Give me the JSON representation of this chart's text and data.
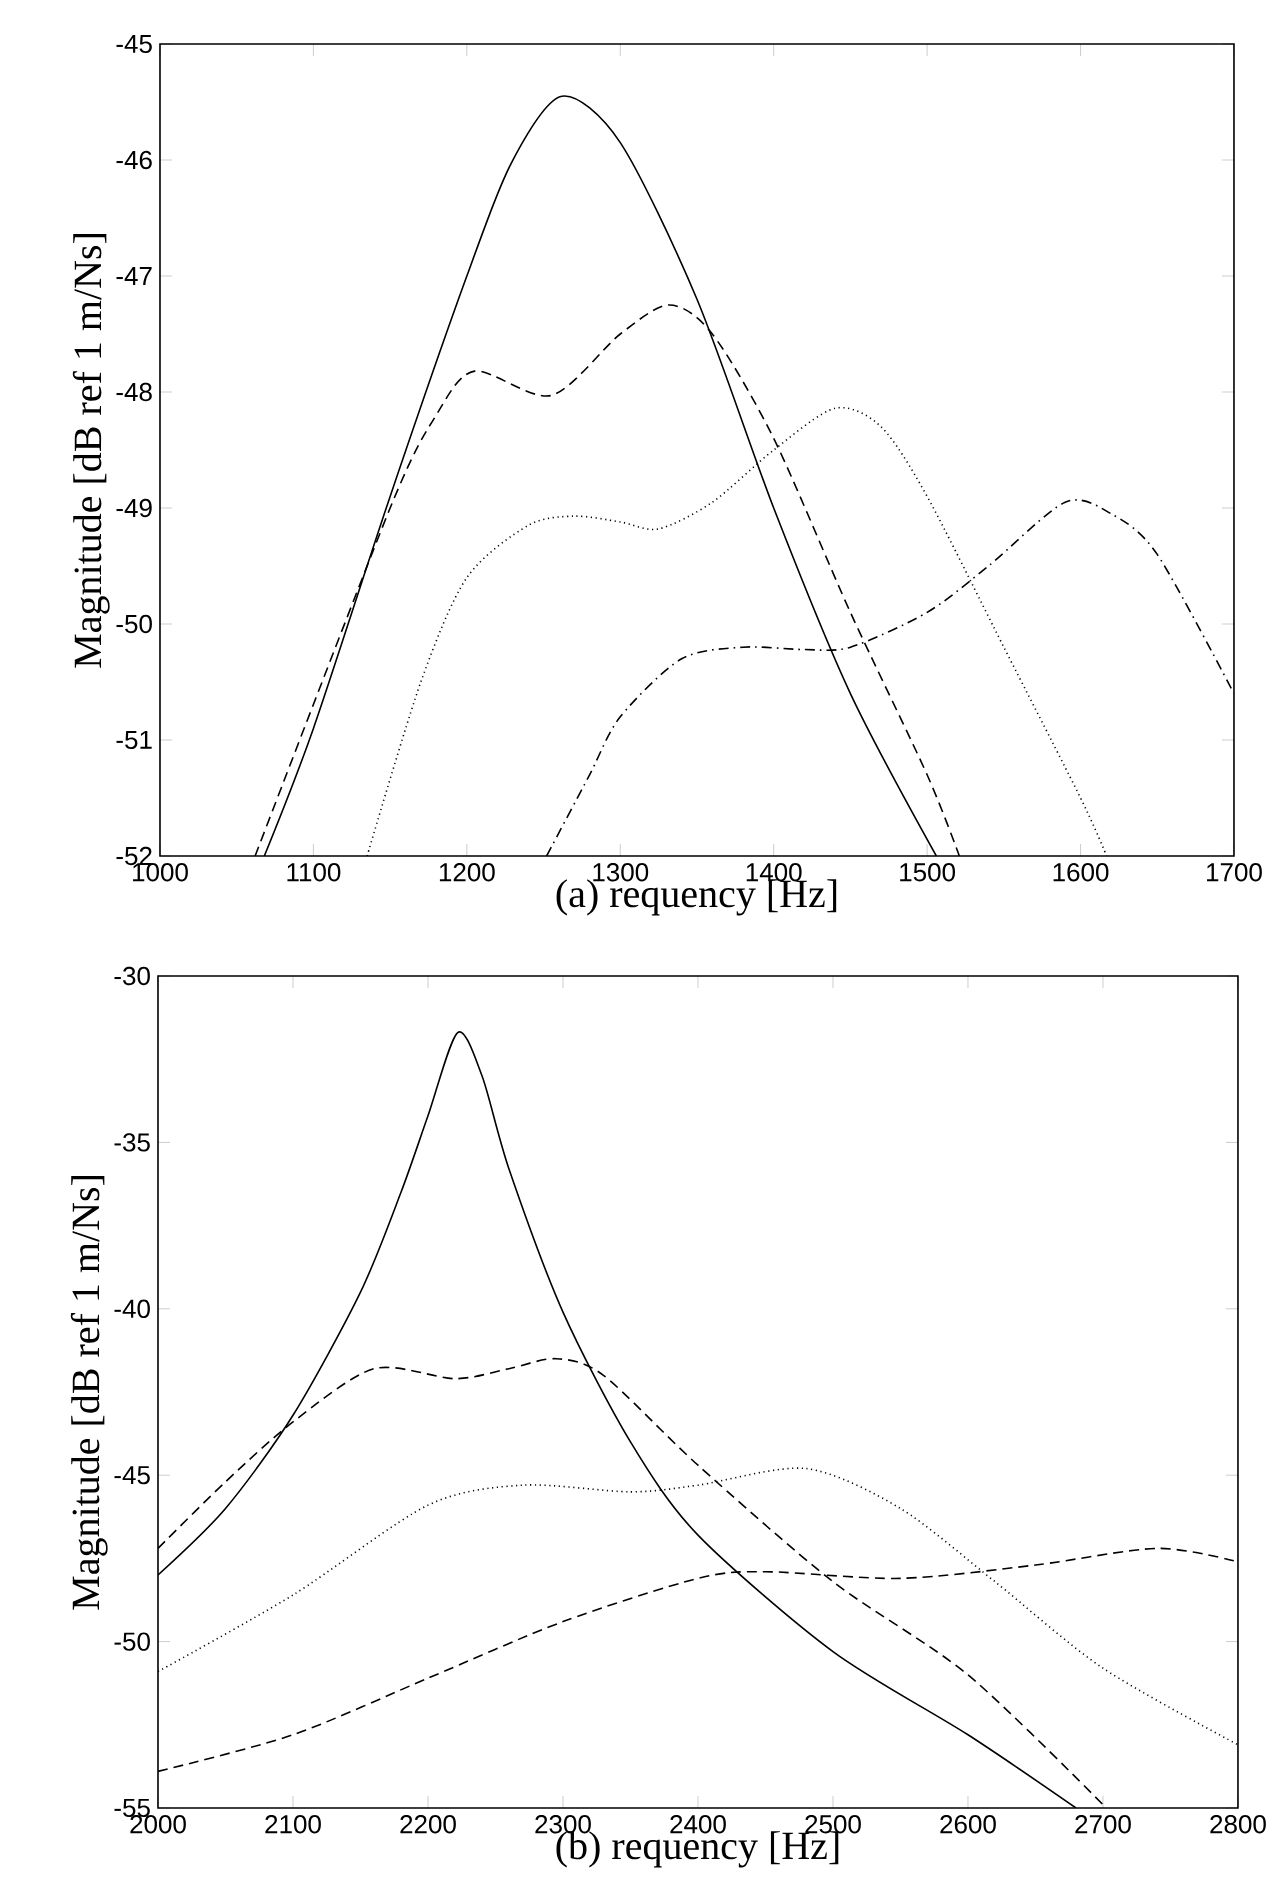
{
  "chart_data": [
    {
      "type": "line",
      "xlabel": "(a)    requency [Hz]",
      "ylabel": "Magnitude [dB ref 1 m/Ns]",
      "xlim": [
        1000,
        1700
      ],
      "ylim": [
        -52,
        -45
      ],
      "xticks": [
        1000,
        1100,
        1200,
        1300,
        1400,
        1500,
        1600,
        1700
      ],
      "yticks": [
        -52,
        -51,
        -50,
        -49,
        -48,
        -47,
        -46,
        -45
      ],
      "series": [
        {
          "color": "#000000",
          "line_style": "solid",
          "x": [
            1068,
            1100,
            1150,
            1200,
            1230,
            1262,
            1300,
            1350,
            1400,
            1450,
            1506
          ],
          "values": [
            -52,
            -50.9,
            -48.9,
            -47.0,
            -46.0,
            -45.45,
            -45.85,
            -47.2,
            -49.0,
            -50.6,
            -52
          ]
        },
        {
          "color": "#000000",
          "line_style": "dashed",
          "x": [
            1062,
            1150,
            1180,
            1205,
            1255,
            1300,
            1332,
            1360,
            1400,
            1450,
            1500,
            1521
          ],
          "values": [
            -52,
            -49.0,
            -48.2,
            -47.82,
            -48.03,
            -47.5,
            -47.25,
            -47.5,
            -48.4,
            -49.9,
            -51.3,
            -52
          ]
        },
        {
          "color": "#000000",
          "line_style": "dotted",
          "x": [
            1135,
            1170,
            1200,
            1240,
            1270,
            1300,
            1325,
            1360,
            1400,
            1440,
            1470,
            1500,
            1550,
            1600,
            1617
          ],
          "values": [
            -52,
            -50.5,
            -49.6,
            -49.15,
            -49.07,
            -49.12,
            -49.18,
            -48.95,
            -48.5,
            -48.14,
            -48.3,
            -48.9,
            -50.2,
            -51.5,
            -52
          ]
        },
        {
          "color": "#000000",
          "line_style": "dashdot",
          "x": [
            1252,
            1280,
            1300,
            1340,
            1380,
            1420,
            1450,
            1500,
            1540,
            1590,
            1620,
            1650,
            1700
          ],
          "values": [
            -52,
            -51.3,
            -50.8,
            -50.3,
            -50.2,
            -50.22,
            -50.2,
            -49.9,
            -49.5,
            -48.95,
            -49.05,
            -49.4,
            -50.6
          ]
        }
      ]
    },
    {
      "type": "line",
      "xlabel": "(b)    requency [Hz]",
      "ylabel": "Magnitude [dB ref 1 m/Ns]",
      "xlim": [
        2000,
        2800
      ],
      "ylim": [
        -55,
        -30
      ],
      "xticks": [
        2000,
        2100,
        2200,
        2300,
        2400,
        2500,
        2600,
        2700,
        2800
      ],
      "yticks": [
        -55,
        -50,
        -45,
        -40,
        -35,
        -30
      ],
      "series": [
        {
          "color": "#000000",
          "line_style": "solid",
          "x": [
            2000,
            2050,
            2100,
            2150,
            2180,
            2200,
            2222,
            2240,
            2260,
            2300,
            2350,
            2400,
            2500,
            2600,
            2680
          ],
          "values": [
            -48.0,
            -46.0,
            -43.2,
            -39.5,
            -36.5,
            -34.2,
            -31.7,
            -33.0,
            -35.8,
            -40.1,
            -44.0,
            -46.8,
            -50.3,
            -52.8,
            -55
          ]
        },
        {
          "color": "#000000",
          "line_style": "dashed",
          "x": [
            2000,
            2050,
            2100,
            2160,
            2220,
            2260,
            2295,
            2330,
            2400,
            2500,
            2600,
            2700
          ],
          "values": [
            -47.2,
            -45.2,
            -43.4,
            -41.8,
            -42.1,
            -41.8,
            -41.5,
            -42.0,
            -44.7,
            -48.2,
            -51.0,
            -54.9
          ]
        },
        {
          "color": "#000000",
          "line_style": "dotted",
          "x": [
            2000,
            2100,
            2200,
            2270,
            2350,
            2400,
            2480,
            2550,
            2620,
            2700,
            2800
          ],
          "values": [
            -50.9,
            -48.6,
            -45.9,
            -45.3,
            -45.5,
            -45.3,
            -44.8,
            -46.0,
            -48.2,
            -50.8,
            -53.1
          ]
        },
        {
          "color": "#000000",
          "line_style": "dashed",
          "x": [
            2000,
            2100,
            2200,
            2300,
            2400,
            2450,
            2550,
            2650,
            2740,
            2800
          ],
          "values": [
            -53.9,
            -52.8,
            -51.1,
            -49.4,
            -48.1,
            -47.9,
            -48.1,
            -47.7,
            -47.2,
            -47.6
          ]
        }
      ]
    }
  ]
}
